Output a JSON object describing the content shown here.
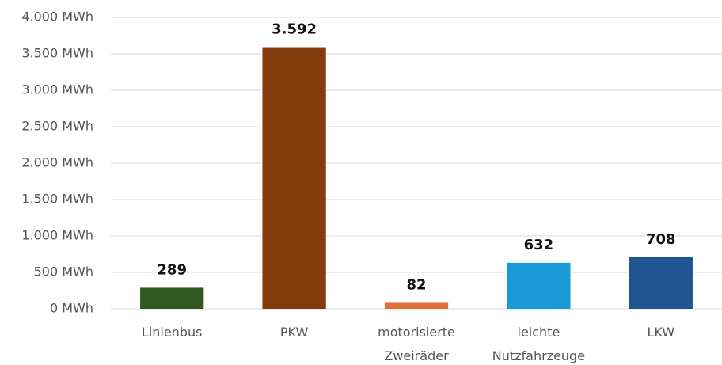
{
  "chart_data": {
    "type": "bar",
    "categories": [
      "Linienbus",
      "PKW",
      "motorisierte Zweiräder",
      "leichte Nutzfahrzeuge",
      "LKW"
    ],
    "values": [
      289,
      3592,
      82,
      632,
      708
    ],
    "value_labels": [
      "289",
      "3.592",
      "82",
      "632",
      "708"
    ],
    "colors": [
      "#2f5a1f",
      "#843c0c",
      "#e0703a",
      "#1a9ad6",
      "#1f5590"
    ],
    "ylim": [
      0,
      4000
    ],
    "yticks": [
      {
        "value": 0,
        "label": "0 MWh"
      },
      {
        "value": 500,
        "label": "500 MWh"
      },
      {
        "value": 1000,
        "label": "1.000 MWh"
      },
      {
        "value": 1500,
        "label": "1.500 MWh"
      },
      {
        "value": 2000,
        "label": "2.000 MWh"
      },
      {
        "value": 2500,
        "label": "2.500 MWh"
      },
      {
        "value": 3000,
        "label": "3.000 MWh"
      },
      {
        "value": 3500,
        "label": "3.500 MWh"
      },
      {
        "value": 4000,
        "label": "4.000 MWh"
      }
    ],
    "grid": true
  }
}
